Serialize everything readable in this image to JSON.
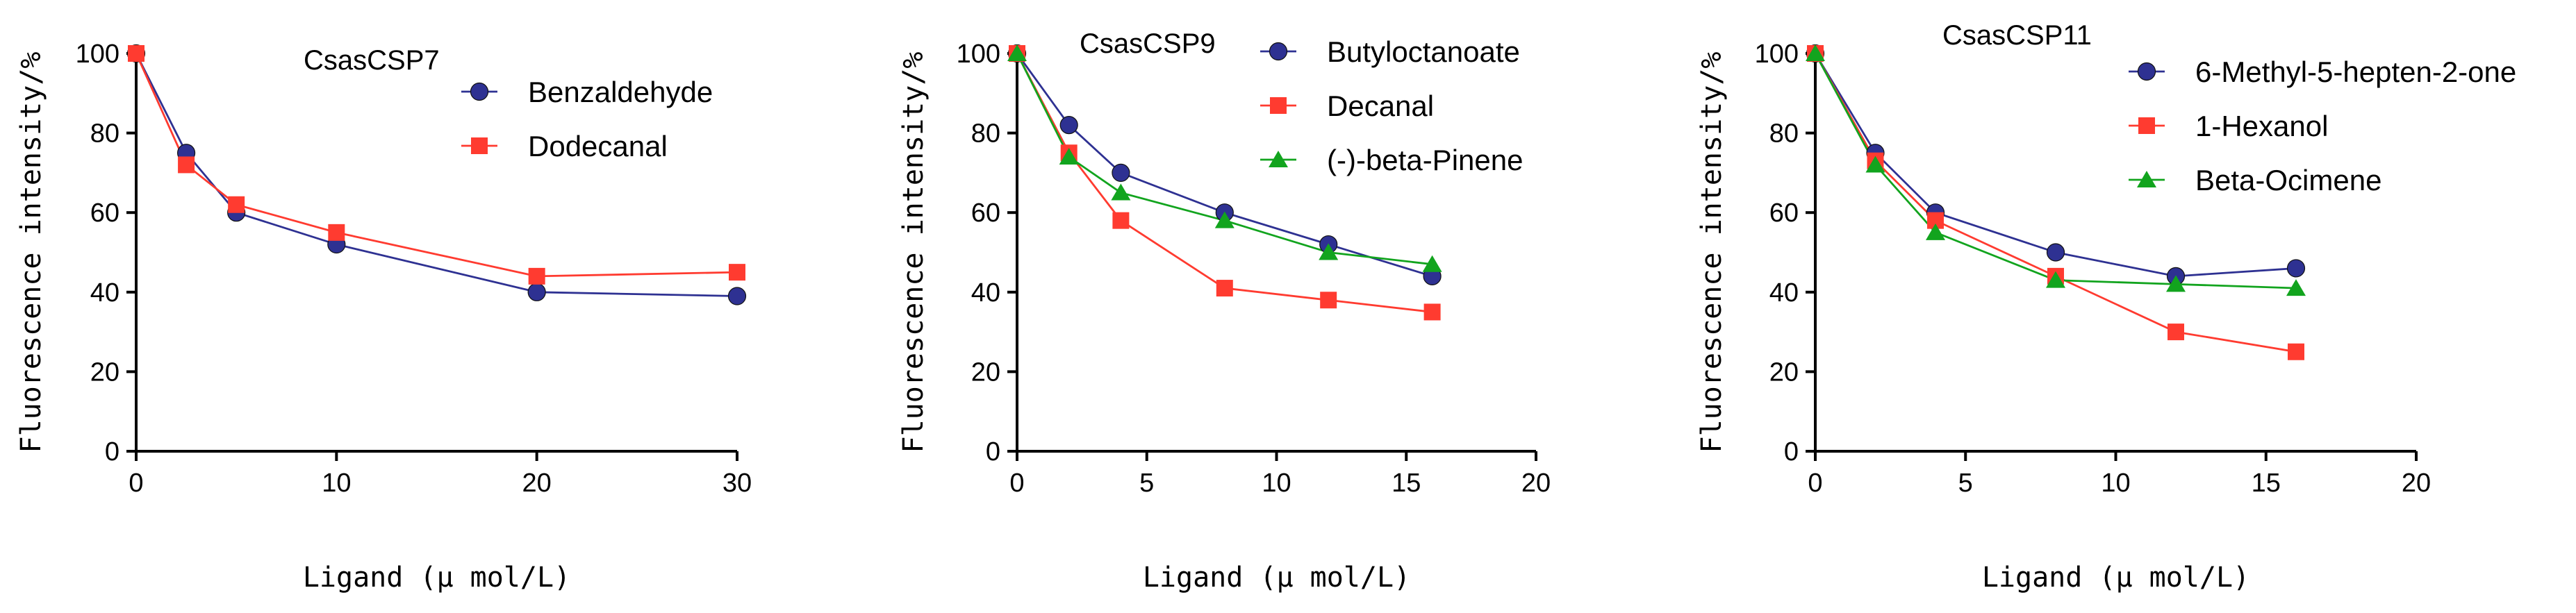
{
  "colors": {
    "blue": "#2E3192",
    "blue_fill": "#3A4196",
    "red": "#FF3B30",
    "green": "#12A41E",
    "axis": "#000000"
  },
  "chart_data": [
    {
      "type": "line",
      "title": "CsasCSP7",
      "xlabel": "Ligand (μ mol/L)",
      "ylabel": "Fluorescence intensity/%",
      "xlim": [
        0,
        30
      ],
      "ylim": [
        0,
        100
      ],
      "xticks": [
        0,
        10,
        20,
        30
      ],
      "yticks": [
        0,
        20,
        40,
        60,
        80,
        100
      ],
      "legend_position": "top-right",
      "series": [
        {
          "name": "Benzaldehyde",
          "marker": "circle",
          "color": "#2E3192",
          "x": [
            0,
            2.5,
            5,
            10,
            20,
            30
          ],
          "y": [
            100,
            75,
            60,
            52,
            40,
            39
          ]
        },
        {
          "name": "Dodecanal",
          "marker": "square",
          "color": "#FF3B30",
          "x": [
            0,
            2.5,
            5,
            10,
            20,
            30
          ],
          "y": [
            100,
            72,
            62,
            55,
            44,
            45
          ]
        }
      ]
    },
    {
      "type": "line",
      "title": "CsasCSP9",
      "xlabel": "Ligand (μ mol/L)",
      "ylabel": "Fluorescence intensity/%",
      "xlim": [
        0,
        20
      ],
      "ylim": [
        0,
        100
      ],
      "xticks": [
        0,
        5,
        10,
        15,
        20
      ],
      "yticks": [
        0,
        20,
        40,
        60,
        80,
        100
      ],
      "legend_position": "top-right",
      "series": [
        {
          "name": "Butyloctanoate",
          "marker": "circle",
          "color": "#2E3192",
          "x": [
            0,
            2,
            4,
            8,
            12,
            16
          ],
          "y": [
            100,
            82,
            70,
            60,
            52,
            44
          ]
        },
        {
          "name": "Decanal",
          "marker": "square",
          "color": "#FF3B30",
          "x": [
            0,
            2,
            4,
            8,
            12,
            16
          ],
          "y": [
            100,
            75,
            58,
            41,
            38,
            35
          ]
        },
        {
          "name": "(-)-beta-Pinene",
          "marker": "triangle",
          "color": "#12A41E",
          "x": [
            0,
            2,
            4,
            8,
            12,
            16
          ],
          "y": [
            100,
            74,
            65,
            58,
            50,
            47
          ]
        }
      ]
    },
    {
      "type": "line",
      "title": "CsasCSP11",
      "xlabel": "Ligand (μ mol/L)",
      "ylabel": "Fluorescence intensity/%",
      "xlim": [
        0,
        20
      ],
      "ylim": [
        0,
        100
      ],
      "xticks": [
        0,
        5,
        10,
        15,
        20
      ],
      "yticks": [
        0,
        20,
        40,
        60,
        80,
        100
      ],
      "legend_position": "top-right",
      "series": [
        {
          "name": "6-Methyl-5-hepten-2-one",
          "marker": "circle",
          "color": "#2E3192",
          "x": [
            0,
            2,
            4,
            8,
            12,
            16
          ],
          "y": [
            100,
            75,
            60,
            50,
            44,
            46
          ]
        },
        {
          "name": "1-Hexanol",
          "marker": "square",
          "color": "#FF3B30",
          "x": [
            0,
            2,
            4,
            8,
            12,
            16
          ],
          "y": [
            100,
            73,
            58,
            44,
            30,
            25
          ]
        },
        {
          "name": "Beta-Ocimene",
          "marker": "triangle",
          "color": "#12A41E",
          "x": [
            0,
            2,
            4,
            8,
            12,
            16
          ],
          "y": [
            100,
            72,
            55,
            43,
            42,
            41
          ]
        }
      ]
    }
  ]
}
